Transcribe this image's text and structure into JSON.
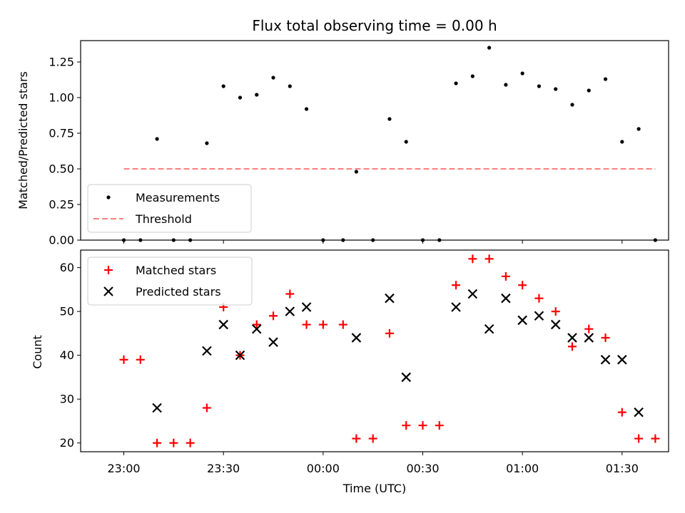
{
  "chart_data": [
    {
      "type": "scatter",
      "title": "Flux total observing time = 0.00 h",
      "ylabel": "Matched/Predicted stars",
      "xlabel": "",
      "xlim_minutes": [
        -13,
        164
      ],
      "ylim": [
        0,
        1.4
      ],
      "yticks": [
        0.0,
        0.25,
        0.5,
        0.75,
        1.0,
        1.25
      ],
      "ytick_labels": [
        "0.00",
        "0.25",
        "0.50",
        "0.75",
        "1.00",
        "1.25"
      ],
      "grid": false,
      "legend_position": "lower-left",
      "series": [
        {
          "name": "Measurements",
          "marker": "dot",
          "color": "#000000",
          "x": [
            0,
            5,
            10,
            15,
            20,
            25,
            30,
            35,
            40,
            45,
            50,
            55,
            60,
            66,
            70,
            75,
            80,
            85,
            90,
            95,
            100,
            105,
            110,
            115,
            120,
            125,
            130,
            135,
            140,
            145,
            150,
            155,
            160
          ],
          "y": [
            0.0,
            0.0,
            0.71,
            0.0,
            0.0,
            0.68,
            1.08,
            1.0,
            1.02,
            1.14,
            1.08,
            0.92,
            0.0,
            0.0,
            0.48,
            0.0,
            0.85,
            0.69,
            0.0,
            0.0,
            1.1,
            1.15,
            1.35,
            1.09,
            1.17,
            1.08,
            1.06,
            0.95,
            1.05,
            1.13,
            0.69,
            0.78,
            0.0
          ]
        },
        {
          "name": "Threshold",
          "style": "dashed",
          "color": "#ff7f7f",
          "x": [
            0,
            160
          ],
          "y": [
            0.5,
            0.5
          ]
        }
      ]
    },
    {
      "type": "scatter",
      "title": "",
      "ylabel": "Count",
      "xlabel": "Time (UTC)",
      "xlim_minutes": [
        -13,
        164
      ],
      "xticks_minutes": [
        0,
        30,
        60,
        90,
        120,
        150
      ],
      "xtick_labels": [
        "23:00",
        "23:30",
        "00:00",
        "00:30",
        "01:00",
        "01:30"
      ],
      "ylim": [
        18,
        64
      ],
      "yticks": [
        20,
        30,
        40,
        50,
        60
      ],
      "ytick_labels": [
        "20",
        "30",
        "40",
        "50",
        "60"
      ],
      "grid": false,
      "legend_position": "upper-left",
      "series": [
        {
          "name": "Matched stars",
          "marker": "plus",
          "color": "#ff0000",
          "x": [
            0,
            5,
            10,
            15,
            20,
            25,
            30,
            35,
            40,
            45,
            50,
            55,
            60,
            66,
            70,
            75,
            80,
            85,
            90,
            95,
            100,
            105,
            110,
            115,
            120,
            125,
            130,
            135,
            140,
            145,
            150,
            155,
            160
          ],
          "y": [
            39,
            39,
            20,
            20,
            20,
            28,
            51,
            40,
            47,
            49,
            54,
            47,
            47,
            47,
            21,
            21,
            45,
            24,
            24,
            24,
            56,
            62,
            62,
            58,
            56,
            53,
            50,
            42,
            46,
            44,
            27,
            21,
            21
          ]
        },
        {
          "name": "Predicted stars",
          "marker": "x",
          "color": "#000000",
          "x": [
            10,
            25,
            30,
            35,
            40,
            45,
            50,
            55,
            70,
            80,
            85,
            100,
            105,
            110,
            115,
            120,
            125,
            130,
            135,
            140,
            145,
            150,
            155
          ],
          "y": [
            28,
            41,
            47,
            40,
            46,
            43,
            50,
            51,
            44,
            53,
            35,
            51,
            54,
            46,
            53,
            48,
            49,
            47,
            44,
            44,
            39,
            39,
            27
          ]
        }
      ]
    }
  ]
}
